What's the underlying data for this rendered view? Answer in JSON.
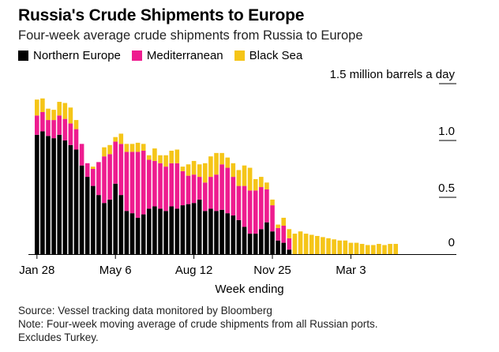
{
  "title": "Russia's Crude Shipments to Europe",
  "subtitle": "Four-week average crude shipments from Russia to Europe",
  "legend": [
    {
      "label": "Northern Europe",
      "color": "#000000"
    },
    {
      "label": "Mediterranean",
      "color": "#ee1c8f"
    },
    {
      "label": "Black Sea",
      "color": "#f5c518"
    }
  ],
  "footnotes": {
    "source": "Source: Vessel tracking data monitored by Bloomberg",
    "note": "Note: Four-week moving average of crude shipments from all Russian ports.",
    "note2": "Excludes Turkey."
  },
  "chart_data": {
    "type": "bar",
    "stacked": true,
    "title": "Russia's Crude Shipments to Europe",
    "ylabel": "",
    "xlabel": "Week ending",
    "unit_label": "1.5 million barrels a day",
    "ylim": [
      0,
      1.5
    ],
    "yticks": [
      {
        "value": 0,
        "label": "0"
      },
      {
        "value": 0.5,
        "label": "0.5"
      },
      {
        "value": 1.0,
        "label": "1.0"
      },
      {
        "value": 1.5,
        "label": "1.5 million barrels a day"
      }
    ],
    "xticks": [
      {
        "index": 0,
        "label": "Jan 28"
      },
      {
        "index": 14,
        "label": "May 6"
      },
      {
        "index": 28,
        "label": "Aug 12"
      },
      {
        "index": 42,
        "label": "Nov 25"
      },
      {
        "index": 56,
        "label": "Mar 3"
      }
    ],
    "series": [
      {
        "name": "Northern Europe",
        "color": "#000000",
        "values": [
          1.05,
          1.08,
          1.04,
          1.02,
          1.05,
          1.0,
          0.96,
          0.92,
          0.78,
          0.68,
          0.6,
          0.52,
          0.45,
          0.48,
          0.62,
          0.52,
          0.38,
          0.36,
          0.32,
          0.35,
          0.4,
          0.42,
          0.4,
          0.38,
          0.42,
          0.4,
          0.43,
          0.44,
          0.45,
          0.48,
          0.38,
          0.4,
          0.38,
          0.39,
          0.36,
          0.34,
          0.3,
          0.24,
          0.18,
          0.18,
          0.22,
          0.28,
          0.2,
          0.12,
          0.1,
          0.04,
          0,
          0,
          0,
          0,
          0,
          0,
          0,
          0,
          0,
          0,
          0,
          0,
          0,
          0,
          0,
          0,
          0,
          0,
          0
        ]
      },
      {
        "name": "Mediterranean",
        "color": "#ee1c8f",
        "values": [
          0.17,
          0.17,
          0.14,
          0.16,
          0.17,
          0.19,
          0.19,
          0.18,
          0.19,
          0.12,
          0.15,
          0.29,
          0.41,
          0.4,
          0.37,
          0.45,
          0.52,
          0.54,
          0.58,
          0.56,
          0.43,
          0.4,
          0.4,
          0.39,
          0.38,
          0.4,
          0.3,
          0.25,
          0.25,
          0.2,
          0.25,
          0.28,
          0.32,
          0.4,
          0.4,
          0.34,
          0.3,
          0.36,
          0.38,
          0.38,
          0.37,
          0.29,
          0.23,
          0.11,
          0.15,
          0.1,
          0,
          0,
          0,
          0,
          0,
          0,
          0,
          0,
          0,
          0,
          0,
          0,
          0,
          0,
          0,
          0,
          0,
          0,
          0
        ]
      },
      {
        "name": "Black Sea",
        "color": "#f5c518",
        "values": [
          0.14,
          0.12,
          0.1,
          0.09,
          0.12,
          0.14,
          0.14,
          0.08,
          0.0,
          0.0,
          0.02,
          0.0,
          0.08,
          0.08,
          0.04,
          0.09,
          0.07,
          0.07,
          0.08,
          0.06,
          0.04,
          0.11,
          0.07,
          0.1,
          0.11,
          0.12,
          0.04,
          0.1,
          0.12,
          0.11,
          0.17,
          0.18,
          0.19,
          0.1,
          0.09,
          0.12,
          0.14,
          0.18,
          0.2,
          0.1,
          0.09,
          0.06,
          0.05,
          0.03,
          0.07,
          0.08,
          0.18,
          0.2,
          0.18,
          0.17,
          0.16,
          0.15,
          0.14,
          0.13,
          0.12,
          0.12,
          0.1,
          0.1,
          0.09,
          0.08,
          0.08,
          0.09,
          0.08,
          0.09,
          0.09
        ]
      }
    ]
  }
}
